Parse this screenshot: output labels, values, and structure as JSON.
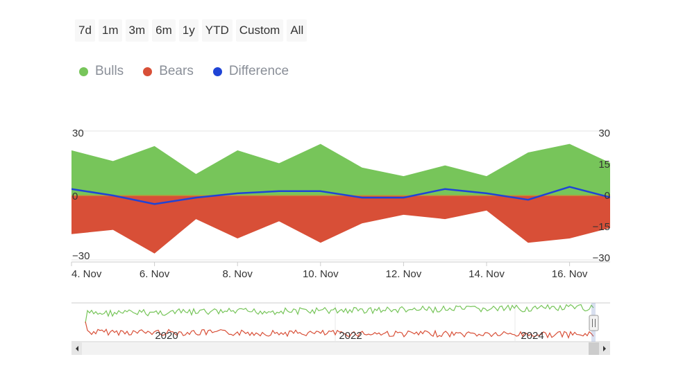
{
  "range_selector": {
    "buttons": [
      "7d",
      "1m",
      "3m",
      "6m",
      "1y",
      "YTD",
      "Custom",
      "All"
    ]
  },
  "legend": [
    {
      "label": "Bulls",
      "color": "#77c55a"
    },
    {
      "label": "Bears",
      "color": "#d84f37"
    },
    {
      "label": "Difference",
      "color": "#1f44d6"
    }
  ],
  "chart_data": {
    "type": "area",
    "x": [
      "4 Nov",
      "5 Nov",
      "6 Nov",
      "7 Nov",
      "8 Nov",
      "9 Nov",
      "10 Nov",
      "11 Nov",
      "12 Nov",
      "13 Nov",
      "14 Nov",
      "15 Nov",
      "16 Nov",
      "17 Nov"
    ],
    "x_tick_labels": [
      "4. Nov",
      "6. Nov",
      "8. Nov",
      "10. Nov",
      "12. Nov",
      "14. Nov",
      "16. Nov"
    ],
    "series": [
      {
        "name": "Bulls",
        "color": "#77c55a",
        "values": [
          21,
          16,
          23,
          10,
          21,
          15,
          24,
          13,
          9,
          14,
          9,
          20,
          24,
          15
        ]
      },
      {
        "name": "Bears",
        "color": "#d84f37",
        "values": [
          -18,
          -16,
          -27,
          -11,
          -20,
          -12,
          -22,
          -13,
          -9,
          -11,
          -7,
          -22,
          -20,
          -15
        ]
      },
      {
        "name": "Difference",
        "color": "#1f44d6",
        "values": [
          3,
          0,
          -4,
          -1,
          1,
          2,
          2,
          -1,
          -1,
          3,
          1,
          -2,
          4,
          -1
        ]
      }
    ],
    "left_axis": {
      "ticks": [
        30,
        0,
        -30
      ],
      "range": [
        -30,
        30
      ]
    },
    "right_axis": {
      "ticks": [
        30,
        15,
        0,
        -15,
        -30
      ],
      "range": [
        -30,
        30
      ]
    },
    "navigator": {
      "year_labels": [
        "2020",
        "2022",
        "2024"
      ]
    }
  }
}
